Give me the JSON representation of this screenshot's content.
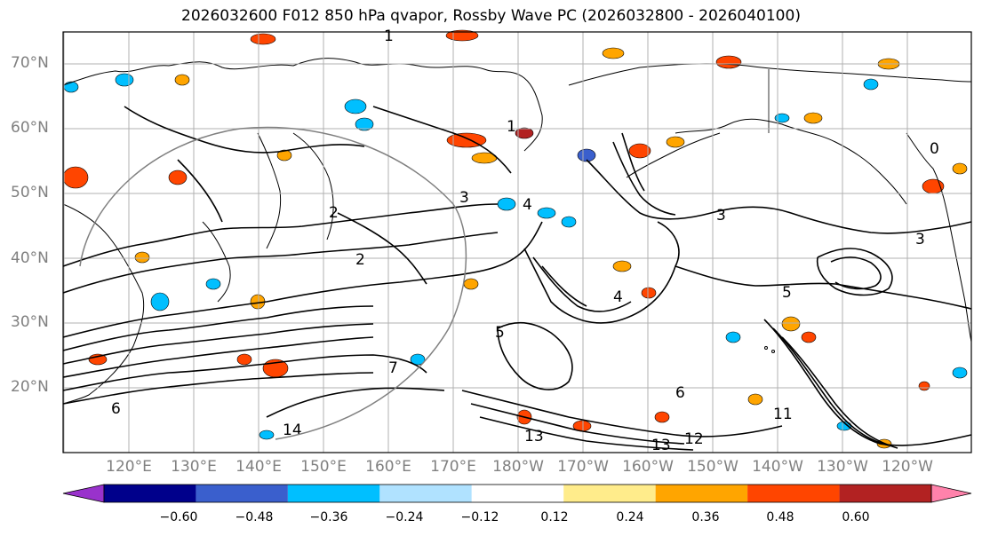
{
  "title": "2026032600 F012 850 hPa qvapor, Rossby Wave PC (2026032800 - 2026040100)",
  "map": {
    "lat_labels": [
      "70°N",
      "60°N",
      "50°N",
      "40°N",
      "30°N",
      "20°N"
    ],
    "lon_labels": [
      "120°E",
      "130°E",
      "140°E",
      "150°E",
      "160°E",
      "170°E",
      "180°W",
      "170°W",
      "160°W",
      "150°W",
      "140°W",
      "130°W",
      "120°W"
    ],
    "contour_labels": [
      "1",
      "1",
      "2",
      "2",
      "3",
      "3",
      "3",
      "4",
      "4",
      "5",
      "5",
      "6",
      "6",
      "7",
      "11",
      "12",
      "13",
      "13",
      "14",
      "0"
    ]
  },
  "colorbar": {
    "ticks": [
      "−0.60",
      "−0.48",
      "−0.36",
      "−0.24",
      "−0.12",
      "0.12",
      "0.24",
      "0.36",
      "0.48",
      "0.60"
    ],
    "colors": [
      "#9932cc",
      "#00008b",
      "#3a5fcd",
      "#00bfff",
      "#b0e2ff",
      "#ffffff",
      "#ffec8b",
      "#ffa500",
      "#ff4500",
      "#b22222",
      "#ff82ab"
    ]
  }
}
